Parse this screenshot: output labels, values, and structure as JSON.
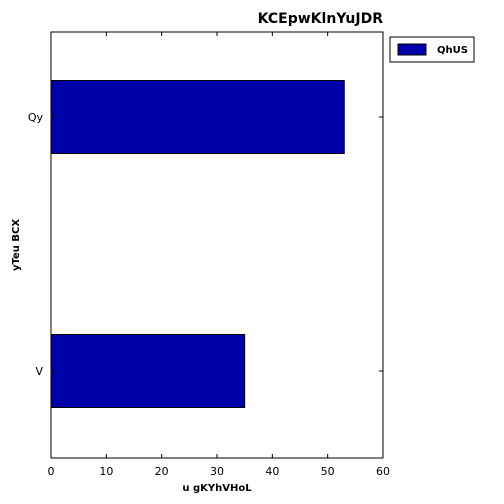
{
  "chart_data": {
    "type": "bar",
    "orientation": "horizontal",
    "title": "KCEpwKlnYuJDR",
    "xlabel": "u gKYhVHoL",
    "ylabel": "yTeu BCX",
    "categories": [
      "V",
      "Qy"
    ],
    "series": [
      {
        "name": "QhUS",
        "values": [
          35,
          53
        ],
        "color": "#0000aa"
      }
    ],
    "xlim": [
      0,
      60
    ],
    "xticks": [
      0,
      10,
      20,
      30,
      40,
      50,
      60
    ],
    "grid": false,
    "legend": "top-right, outside plot area"
  }
}
